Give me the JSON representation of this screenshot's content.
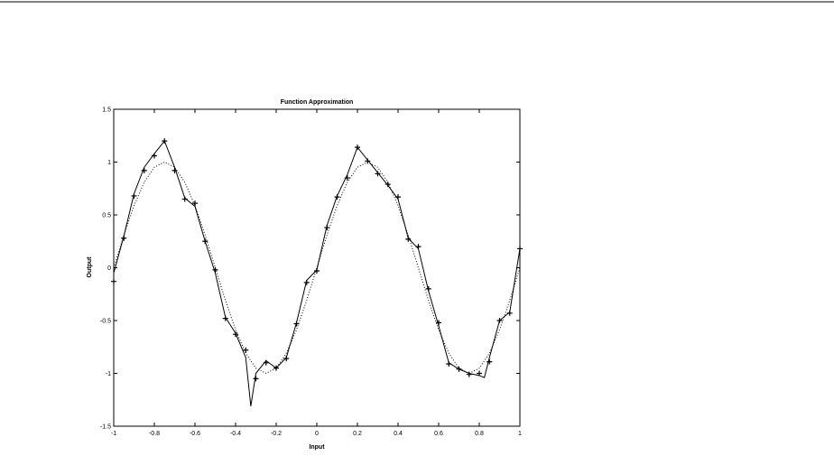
{
  "chart_data": {
    "type": "line",
    "title": "Function Approximation",
    "xlabel": "Input",
    "ylabel": "Output",
    "xlim": [
      -1,
      1
    ],
    "ylim": [
      -1.5,
      1.5
    ],
    "xticks": [
      -1,
      -0.8,
      -0.6,
      -0.4,
      -0.2,
      0,
      0.2,
      0.4,
      0.6,
      0.8,
      1
    ],
    "yticks": [
      -1.5,
      -1,
      -0.5,
      0,
      0.5,
      1,
      1.5
    ],
    "x": [
      -1,
      -0.95,
      -0.9,
      -0.85,
      -0.8,
      -0.75,
      -0.7,
      -0.65,
      -0.6,
      -0.55,
      -0.5,
      -0.45,
      -0.4,
      -0.35,
      -0.3,
      -0.25,
      -0.2,
      -0.15,
      -0.1,
      -0.05,
      0,
      0.05,
      0.1,
      0.15,
      0.2,
      0.25,
      0.3,
      0.35,
      0.4,
      0.45,
      0.5,
      0.55,
      0.6,
      0.65,
      0.7,
      0.75,
      0.8,
      0.85,
      0.9,
      0.95,
      1
    ],
    "series": [
      {
        "style": "markers",
        "color": "#000000",
        "values": [
          -0.13,
          0.28,
          0.68,
          0.92,
          1.06,
          1.2,
          0.92,
          0.65,
          0.61,
          0.25,
          -0.02,
          -0.48,
          -0.63,
          -0.78,
          -1.05,
          -0.9,
          -0.95,
          -0.86,
          -0.53,
          -0.14,
          -0.03,
          0.38,
          0.67,
          0.85,
          1.14,
          1.01,
          0.89,
          0.79,
          0.67,
          0.27,
          0.2,
          -0.2,
          -0.52,
          -0.91,
          -0.96,
          -1.01,
          -1.0,
          -0.89,
          -0.5,
          -0.43,
          0.18
        ]
      },
      {
        "style": "solid",
        "color": "#000000",
        "x": [
          -1,
          -0.95,
          -0.9,
          -0.85,
          -0.8,
          -0.75,
          -0.7,
          -0.65,
          -0.6,
          -0.55,
          -0.5,
          -0.45,
          -0.4,
          -0.35,
          -0.325,
          -0.3,
          -0.25,
          -0.2,
          -0.15,
          -0.1,
          -0.05,
          0,
          0.05,
          0.1,
          0.15,
          0.2,
          0.25,
          0.3,
          0.35,
          0.4,
          0.45,
          0.5,
          0.55,
          0.6,
          0.65,
          0.7,
          0.75,
          0.8,
          0.825,
          0.85,
          0.9,
          0.95,
          1
        ],
        "values": [
          -0.05,
          0.3,
          0.7,
          0.95,
          1.08,
          1.2,
          0.95,
          0.66,
          0.58,
          0.25,
          -0.05,
          -0.47,
          -0.62,
          -0.85,
          -1.31,
          -1.0,
          -0.88,
          -0.95,
          -0.85,
          -0.52,
          -0.12,
          -0.02,
          0.4,
          0.68,
          0.88,
          1.14,
          1.02,
          0.9,
          0.78,
          0.65,
          0.28,
          0.18,
          -0.22,
          -0.55,
          -0.9,
          -0.96,
          -1.0,
          -1.02,
          -1.04,
          -0.85,
          -0.5,
          -0.42,
          0.18
        ]
      },
      {
        "style": "dotted",
        "color": "#000000",
        "values": [
          0,
          0.309,
          0.588,
          0.809,
          0.951,
          1,
          0.951,
          0.809,
          0.588,
          0.309,
          0,
          -0.309,
          -0.588,
          -0.809,
          -0.951,
          -1,
          -0.951,
          -0.809,
          -0.588,
          -0.309,
          0,
          0.309,
          0.588,
          0.809,
          0.951,
          1,
          0.951,
          0.809,
          0.588,
          0.309,
          0,
          -0.309,
          -0.588,
          -0.809,
          -0.951,
          -1,
          -0.951,
          -0.809,
          -0.588,
          -0.309,
          0
        ]
      }
    ]
  }
}
